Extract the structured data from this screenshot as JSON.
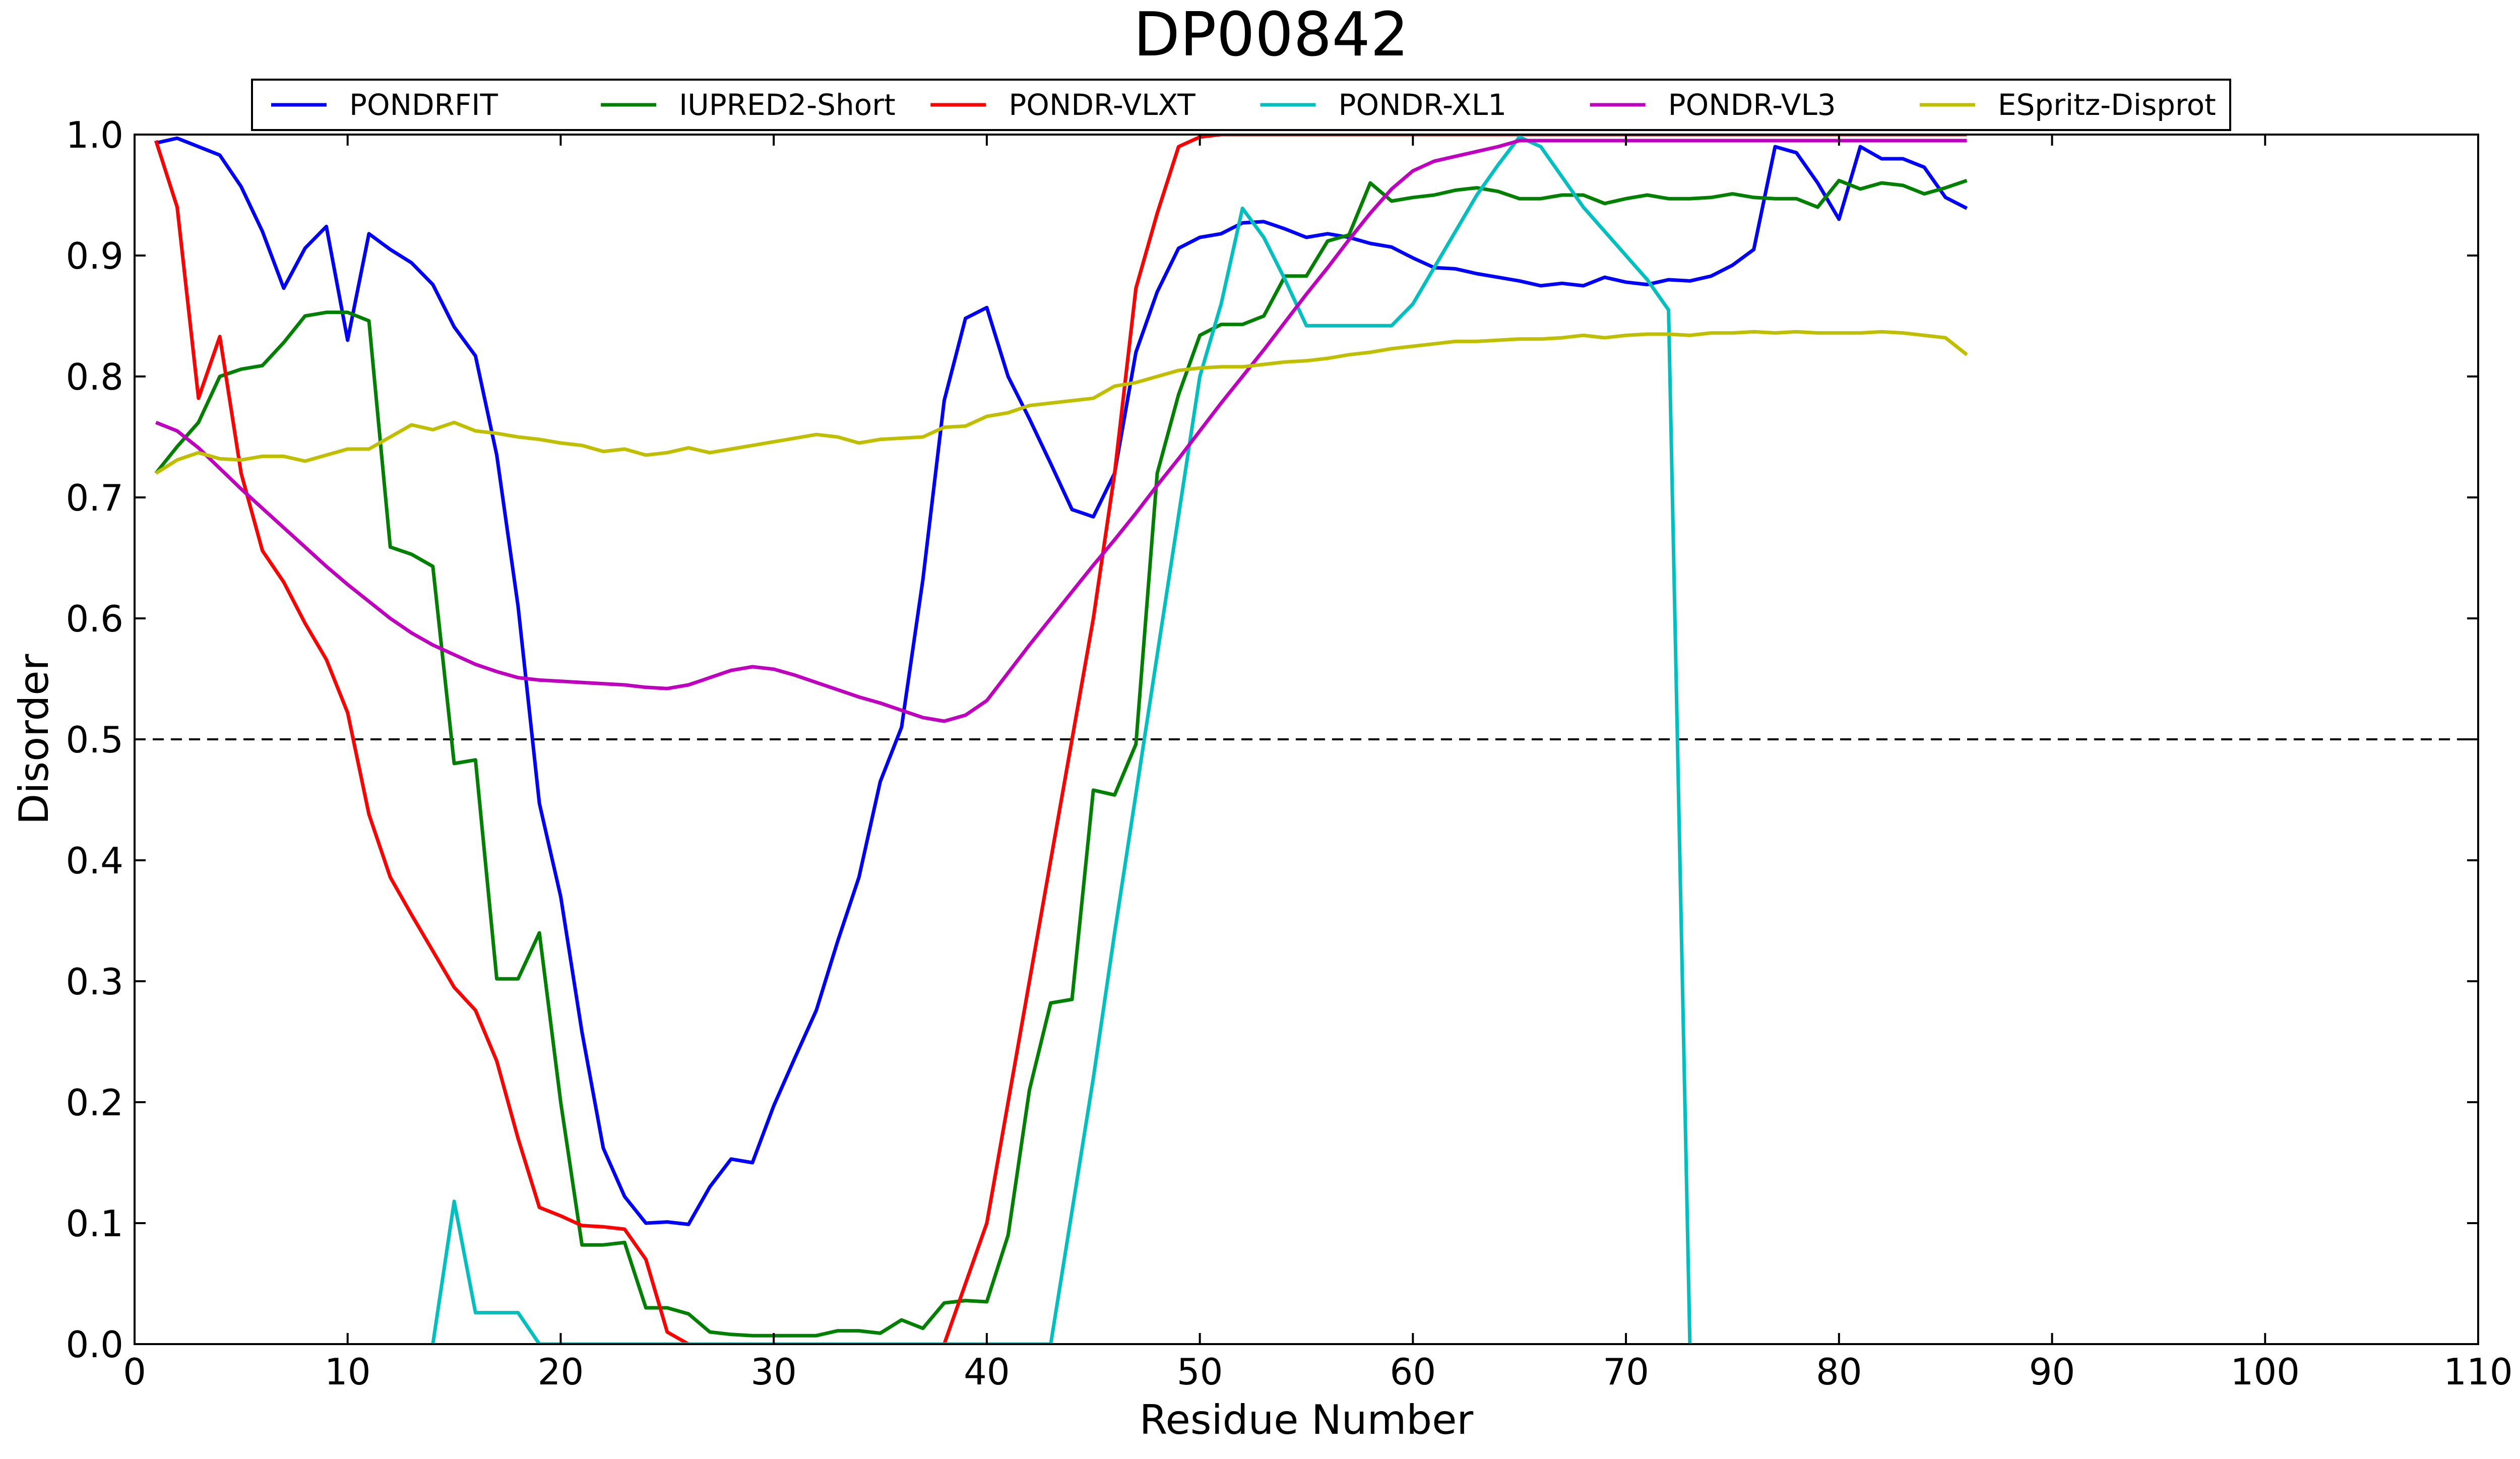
{
  "chart_data": {
    "type": "line",
    "title": "DP00842",
    "xlabel": "Residue Number",
    "ylabel": "Disorder",
    "xlim": [
      0,
      110
    ],
    "ylim": [
      0.0,
      1.0
    ],
    "xticks": [
      0,
      10,
      20,
      30,
      40,
      50,
      60,
      70,
      80,
      90,
      100,
      110
    ],
    "yticks": [
      0.0,
      0.1,
      0.2,
      0.3,
      0.4,
      0.5,
      0.6,
      0.7,
      0.8,
      0.9,
      1.0
    ],
    "xtick_labels": [
      "0",
      "10",
      "20",
      "30",
      "40",
      "50",
      "60",
      "70",
      "80",
      "90",
      "100",
      "110"
    ],
    "ytick_labels": [
      "0.0",
      "0.1",
      "0.2",
      "0.3",
      "0.4",
      "0.5",
      "0.6",
      "0.7",
      "0.8",
      "0.9",
      "1.0"
    ],
    "grid": false,
    "legend_position": "top, above plot",
    "threshold": {
      "y": 0.5,
      "style": "dashed",
      "color": "#000000"
    },
    "series": [
      {
        "name": "PONDRFIT",
        "color": "#0000ff",
        "x": [
          1,
          2,
          3,
          4,
          5,
          6,
          7,
          8,
          9,
          10,
          11,
          12,
          13,
          14,
          15,
          16,
          17,
          18,
          19,
          20,
          21,
          22,
          23,
          24,
          25,
          26,
          27,
          28,
          29,
          30,
          31,
          32,
          33,
          34,
          35,
          36,
          37,
          38,
          39,
          40,
          41,
          42,
          43,
          44,
          45,
          46,
          47,
          48,
          49,
          50,
          51,
          52,
          53,
          54,
          55,
          56,
          57,
          58,
          59,
          60,
          61,
          62,
          63,
          64,
          65,
          66,
          67,
          68,
          69,
          70,
          71,
          72,
          73,
          74,
          75,
          76,
          77,
          78,
          79,
          80,
          81,
          82,
          83,
          84,
          85,
          86
        ],
        "y": [
          0.993,
          0.997,
          0.99,
          0.983,
          0.957,
          0.92,
          0.873,
          0.906,
          0.924,
          0.83,
          0.918,
          0.905,
          0.894,
          0.876,
          0.841,
          0.817,
          0.735,
          0.61,
          0.447,
          0.37,
          0.258,
          0.162,
          0.122,
          0.1,
          0.101,
          0.099,
          0.13,
          0.153,
          0.15,
          0.197,
          0.237,
          0.276,
          0.333,
          0.386,
          0.465,
          0.51,
          0.632,
          0.78,
          0.848,
          0.857,
          0.8,
          0.765,
          0.728,
          0.69,
          0.684,
          0.72,
          0.82,
          0.87,
          0.906,
          0.915,
          0.918,
          0.927,
          0.928,
          0.922,
          0.915,
          0.918,
          0.915,
          0.91,
          0.907,
          0.898,
          0.89,
          0.889,
          0.885,
          0.882,
          0.879,
          0.875,
          0.877,
          0.875,
          0.882,
          0.878,
          0.876,
          0.88,
          0.879,
          0.883,
          0.892,
          0.905,
          0.99,
          0.985,
          0.96,
          0.93,
          0.99,
          0.98,
          0.98,
          0.973,
          0.948,
          0.939
        ]
      },
      {
        "name": "IUPRED2-Short",
        "color": "#008000",
        "x": [
          1,
          2,
          3,
          4,
          5,
          6,
          7,
          8,
          9,
          10,
          11,
          12,
          13,
          14,
          15,
          16,
          17,
          18,
          19,
          20,
          21,
          22,
          23,
          24,
          25,
          26,
          27,
          28,
          29,
          30,
          31,
          32,
          33,
          34,
          35,
          36,
          37,
          38,
          39,
          40,
          41,
          42,
          43,
          44,
          45,
          46,
          47,
          48,
          49,
          50,
          51,
          52,
          53,
          54,
          55,
          56,
          57,
          58,
          59,
          60,
          61,
          62,
          63,
          64,
          65,
          66,
          67,
          68,
          69,
          70,
          71,
          72,
          73,
          74,
          75,
          76,
          77,
          78,
          79,
          80,
          81,
          82,
          83,
          84,
          85,
          86
        ],
        "y": [
          0.72,
          0.742,
          0.762,
          0.8,
          0.806,
          0.809,
          0.828,
          0.85,
          0.853,
          0.853,
          0.846,
          0.659,
          0.653,
          0.643,
          0.48,
          0.483,
          0.302,
          0.302,
          0.34,
          0.2,
          0.082,
          0.082,
          0.084,
          0.03,
          0.03,
          0.025,
          0.01,
          0.008,
          0.007,
          0.007,
          0.007,
          0.007,
          0.011,
          0.011,
          0.009,
          0.02,
          0.013,
          0.034,
          0.036,
          0.035,
          0.09,
          0.21,
          0.282,
          0.285,
          0.458,
          0.454,
          0.496,
          0.72,
          0.785,
          0.834,
          0.843,
          0.843,
          0.85,
          0.883,
          0.883,
          0.912,
          0.917,
          0.96,
          0.945,
          0.948,
          0.95,
          0.954,
          0.956,
          0.953,
          0.947,
          0.947,
          0.95,
          0.95,
          0.943,
          0.947,
          0.95,
          0.947,
          0.947,
          0.948,
          0.951,
          0.948,
          0.947,
          0.947,
          0.94,
          0.962,
          0.955,
          0.96,
          0.958,
          0.951,
          0.956,
          0.962
        ]
      },
      {
        "name": "PONDR-VLXT",
        "color": "#ff0000",
        "x": [
          1,
          2,
          3,
          4,
          5,
          6,
          7,
          8,
          9,
          10,
          11,
          12,
          13,
          14,
          15,
          16,
          17,
          18,
          19,
          20,
          21,
          22,
          23,
          24,
          25,
          26,
          27,
          28,
          29,
          30,
          31,
          32,
          33,
          34,
          35,
          36,
          37,
          38,
          39,
          40,
          41,
          42,
          43,
          44,
          45,
          46,
          47,
          48,
          49,
          50,
          51,
          52,
          53,
          54,
          55,
          56,
          57,
          58,
          59,
          60,
          61,
          62,
          63,
          64,
          65,
          66,
          67,
          68,
          69,
          70,
          71,
          72,
          73,
          74,
          75,
          76,
          77,
          78,
          79,
          80,
          81,
          82,
          83,
          84,
          85,
          86
        ],
        "y": [
          0.995,
          0.94,
          0.782,
          0.833,
          0.72,
          0.656,
          0.63,
          0.596,
          0.566,
          0.522,
          0.438,
          0.386,
          0.355,
          0.325,
          0.295,
          0.276,
          0.234,
          0.17,
          0.113,
          0.106,
          0.098,
          0.097,
          0.095,
          0.07,
          0.01,
          0.0,
          0.0,
          0.0,
          0.0,
          0.0,
          0.0,
          0.0,
          0.0,
          0.0,
          0.0,
          0.0,
          0.0,
          0.0,
          0.05,
          0.1,
          0.2,
          0.3,
          0.4,
          0.5,
          0.6,
          0.72,
          0.873,
          0.935,
          0.99,
          0.998,
          1.0,
          1.0,
          1.0,
          1.0,
          1.0,
          1.0,
          1.0,
          1.0,
          1.0,
          1.0,
          1.0,
          1.0,
          1.0,
          1.0,
          1.0,
          1.0,
          1.0,
          1.0,
          1.0,
          1.0,
          1.0,
          1.0,
          1.0,
          1.0,
          1.0,
          1.0,
          1.0,
          1.0,
          1.0,
          1.0,
          1.0,
          1.0,
          1.0,
          1.0,
          1.0,
          1.0
        ]
      },
      {
        "name": "PONDR-XL1",
        "color": "#00bfbf",
        "x": [
          14,
          15,
          16,
          17,
          18,
          19,
          43,
          44,
          45,
          46,
          47,
          48,
          49,
          50,
          51,
          52,
          53,
          54,
          55,
          56,
          57,
          58,
          59,
          60,
          61,
          62,
          63,
          64,
          65,
          66,
          67,
          68,
          69,
          70,
          71,
          72,
          73
        ],
        "y": [
          0.0,
          0.118,
          0.026,
          0.026,
          0.026,
          0.0,
          0.0,
          0.11,
          0.22,
          0.34,
          0.455,
          0.57,
          0.685,
          0.8,
          0.86,
          0.939,
          0.915,
          0.88,
          0.842,
          0.842,
          0.842,
          0.842,
          0.842,
          0.86,
          0.89,
          0.92,
          0.95,
          0.975,
          0.998,
          0.99,
          0.965,
          0.94,
          0.92,
          0.9,
          0.88,
          0.855,
          0.0
        ]
      },
      {
        "name": "PONDR-VL3",
        "color": "#bf00bf",
        "x": [
          1,
          2,
          3,
          4,
          5,
          6,
          7,
          8,
          9,
          10,
          11,
          12,
          13,
          14,
          15,
          16,
          17,
          18,
          19,
          20,
          21,
          22,
          23,
          24,
          25,
          26,
          27,
          28,
          29,
          30,
          31,
          32,
          33,
          34,
          35,
          36,
          37,
          38,
          39,
          40,
          41,
          42,
          43,
          44,
          45,
          46,
          47,
          48,
          49,
          50,
          51,
          52,
          53,
          54,
          55,
          56,
          57,
          58,
          59,
          60,
          61,
          62,
          63,
          64,
          65,
          66,
          67,
          68,
          69,
          70,
          71,
          72,
          73,
          74,
          75,
          76,
          77,
          78,
          79,
          80,
          81,
          82,
          83,
          84,
          85,
          86
        ],
        "y": [
          0.762,
          0.755,
          0.741,
          0.724,
          0.707,
          0.691,
          0.675,
          0.659,
          0.643,
          0.628,
          0.614,
          0.6,
          0.588,
          0.578,
          0.57,
          0.562,
          0.556,
          0.551,
          0.549,
          0.548,
          0.547,
          0.546,
          0.545,
          0.543,
          0.542,
          0.545,
          0.551,
          0.557,
          0.56,
          0.558,
          0.553,
          0.547,
          0.541,
          0.535,
          0.53,
          0.524,
          0.518,
          0.515,
          0.52,
          0.532,
          0.555,
          0.578,
          0.6,
          0.622,
          0.644,
          0.665,
          0.687,
          0.71,
          0.732,
          0.755,
          0.778,
          0.8,
          0.822,
          0.845,
          0.868,
          0.89,
          0.913,
          0.935,
          0.955,
          0.97,
          0.978,
          0.982,
          0.986,
          0.99,
          0.995,
          0.995,
          0.995,
          0.995,
          0.995,
          0.995,
          0.995,
          0.995,
          0.995,
          0.995,
          0.995,
          0.995,
          0.995,
          0.995,
          0.995,
          0.995,
          0.995,
          0.995,
          0.995,
          0.995,
          0.995,
          0.995
        ]
      },
      {
        "name": "ESpritz-Disprot",
        "color": "#bfbf00",
        "x": [
          1,
          2,
          3,
          4,
          5,
          6,
          7,
          8,
          9,
          10,
          11,
          12,
          13,
          14,
          15,
          16,
          17,
          18,
          19,
          20,
          21,
          22,
          23,
          24,
          25,
          26,
          27,
          28,
          29,
          30,
          31,
          32,
          33,
          34,
          35,
          36,
          37,
          38,
          39,
          40,
          41,
          42,
          43,
          44,
          45,
          46,
          47,
          48,
          49,
          50,
          51,
          52,
          53,
          54,
          55,
          56,
          57,
          58,
          59,
          60,
          61,
          62,
          63,
          64,
          65,
          66,
          67,
          68,
          69,
          70,
          71,
          72,
          73,
          74,
          75,
          76,
          77,
          78,
          79,
          80,
          81,
          82,
          83,
          84,
          85,
          86
        ],
        "y": [
          0.72,
          0.731,
          0.737,
          0.732,
          0.731,
          0.734,
          0.734,
          0.73,
          0.735,
          0.74,
          0.74,
          0.75,
          0.76,
          0.756,
          0.762,
          0.755,
          0.753,
          0.75,
          0.748,
          0.745,
          0.743,
          0.738,
          0.74,
          0.735,
          0.737,
          0.741,
          0.737,
          0.74,
          0.743,
          0.746,
          0.749,
          0.752,
          0.75,
          0.745,
          0.748,
          0.749,
          0.75,
          0.758,
          0.759,
          0.767,
          0.77,
          0.776,
          0.778,
          0.78,
          0.782,
          0.792,
          0.795,
          0.8,
          0.805,
          0.807,
          0.808,
          0.808,
          0.81,
          0.812,
          0.813,
          0.815,
          0.818,
          0.82,
          0.823,
          0.825,
          0.827,
          0.829,
          0.829,
          0.83,
          0.831,
          0.831,
          0.832,
          0.834,
          0.832,
          0.834,
          0.835,
          0.835,
          0.834,
          0.836,
          0.836,
          0.837,
          0.836,
          0.837,
          0.836,
          0.836,
          0.836,
          0.837,
          0.836,
          0.834,
          0.832,
          0.818
        ]
      }
    ]
  }
}
